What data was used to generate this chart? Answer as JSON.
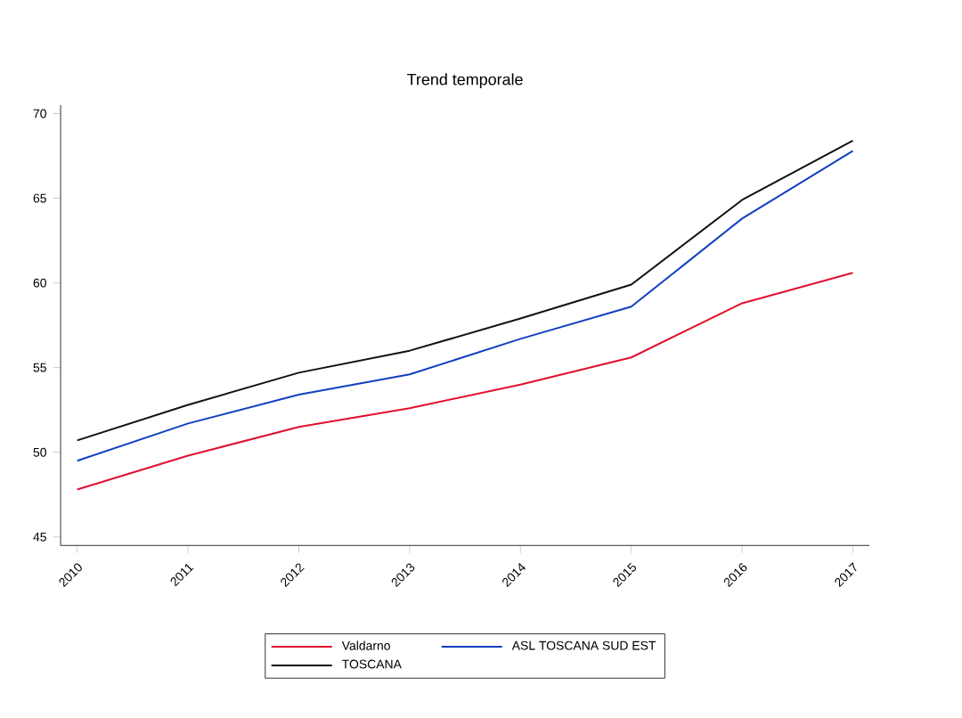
{
  "chart_data": {
    "type": "line",
    "title": "Trend temporale",
    "categories": [
      "2010",
      "2011",
      "2012",
      "2013",
      "2014",
      "2015",
      "2016",
      "2017"
    ],
    "series": [
      {
        "name": "Valdarno",
        "color": "#e0102f",
        "values": [
          47.8,
          49.8,
          51.5,
          52.6,
          54.0,
          55.6,
          58.8,
          60.6
        ]
      },
      {
        "name": "ASL TOSCANA SUD EST",
        "color": "#1040c0",
        "values": [
          49.5,
          51.7,
          53.4,
          54.6,
          56.7,
          58.6,
          63.8,
          67.8
        ]
      },
      {
        "name": "TOSCANA",
        "color": "#111111",
        "values": [
          50.7,
          52.8,
          54.7,
          56.0,
          57.9,
          59.9,
          64.9,
          68.4
        ]
      }
    ],
    "ylim": [
      44.5,
      70.5
    ],
    "yticks": [
      45,
      50,
      55,
      60,
      65,
      70
    ],
    "grid": false,
    "legend": "bottom",
    "marker": "none",
    "line_style": "solid"
  }
}
